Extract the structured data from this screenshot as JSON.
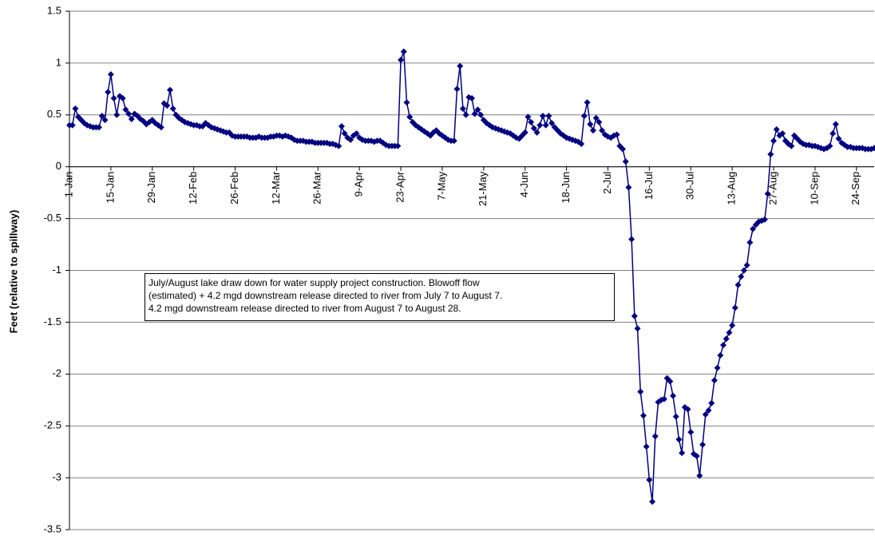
{
  "chart_data": {
    "type": "line",
    "y_label": "Feet (relative to spillway)",
    "annotation": [
      "July/August lake draw down for water supply project construction.  Blowoff flow",
      "(estimated) + 4.2 mgd downstream release directed to river from July 7 to August 7.",
      "4.2 mgd downstream release directed to river from August 7 to August 28."
    ],
    "ylim": [
      -3.5,
      1.5
    ],
    "yticks": [
      -3.5,
      -3,
      -2.5,
      -2,
      -1.5,
      -1,
      -0.5,
      0,
      0.5,
      1,
      1.5
    ],
    "grid": true,
    "color": "#000080",
    "categories": [
      "1-Jan",
      null,
      null,
      null,
      null,
      null,
      null,
      null,
      null,
      null,
      null,
      null,
      null,
      null,
      "15-Jan",
      null,
      null,
      null,
      null,
      null,
      null,
      null,
      null,
      null,
      null,
      null,
      null,
      null,
      "29-Jan",
      null,
      null,
      null,
      null,
      null,
      null,
      null,
      null,
      null,
      null,
      null,
      null,
      null,
      "12-Feb",
      null,
      null,
      null,
      null,
      null,
      null,
      null,
      null,
      null,
      null,
      null,
      null,
      null,
      "26-Feb",
      null,
      null,
      null,
      null,
      null,
      null,
      null,
      null,
      null,
      null,
      null,
      null,
      null,
      "12-Mar",
      null,
      null,
      null,
      null,
      null,
      null,
      null,
      null,
      null,
      null,
      null,
      null,
      null,
      "26-Mar",
      null,
      null,
      null,
      null,
      null,
      null,
      null,
      null,
      null,
      null,
      null,
      null,
      null,
      "9-Apr",
      null,
      null,
      null,
      null,
      null,
      null,
      null,
      null,
      null,
      null,
      null,
      null,
      null,
      "23-Apr",
      null,
      null,
      null,
      null,
      null,
      null,
      null,
      null,
      null,
      null,
      null,
      null,
      null,
      "7-May",
      null,
      null,
      null,
      null,
      null,
      null,
      null,
      null,
      null,
      null,
      null,
      null,
      null,
      "21-May",
      null,
      null,
      null,
      null,
      null,
      null,
      null,
      null,
      null,
      null,
      null,
      null,
      null,
      "4-Jun",
      null,
      null,
      null,
      null,
      null,
      null,
      null,
      null,
      null,
      null,
      null,
      null,
      null,
      "18-Jun",
      null,
      null,
      null,
      null,
      null,
      null,
      null,
      null,
      null,
      null,
      null,
      null,
      null,
      "2-Jul",
      null,
      null,
      null,
      null,
      null,
      null,
      null,
      null,
      null,
      null,
      null,
      null,
      null,
      "16-Jul",
      null,
      null,
      null,
      null,
      null,
      null,
      null,
      null,
      null,
      null,
      null,
      null,
      null,
      "30-Jul",
      null,
      null,
      null,
      null,
      null,
      null,
      null,
      null,
      null,
      null,
      null,
      null,
      null,
      "13-Aug",
      null,
      null,
      null,
      null,
      null,
      null,
      null,
      null,
      null,
      null,
      null,
      null,
      null,
      "27-Aug",
      null,
      null,
      null,
      null,
      null,
      null,
      null,
      null,
      null,
      null,
      null,
      null,
      null,
      "10-Sep",
      null,
      null,
      null,
      null,
      null,
      null,
      null,
      null,
      null,
      null,
      null,
      null,
      null,
      "24-Sep",
      null,
      null,
      null,
      null,
      null,
      null
    ],
    "values": [
      0.4,
      0.4,
      0.56,
      0.48,
      0.45,
      0.42,
      0.4,
      0.39,
      0.38,
      0.38,
      0.38,
      0.49,
      0.45,
      0.72,
      0.89,
      0.66,
      0.5,
      0.68,
      0.66,
      0.55,
      0.51,
      0.46,
      0.51,
      0.49,
      0.46,
      0.44,
      0.41,
      0.43,
      0.45,
      0.42,
      0.4,
      0.38,
      0.61,
      0.59,
      0.74,
      0.56,
      0.5,
      0.47,
      0.45,
      0.43,
      0.42,
      0.41,
      0.4,
      0.4,
      0.39,
      0.39,
      0.42,
      0.4,
      0.38,
      0.37,
      0.36,
      0.35,
      0.34,
      0.33,
      0.33,
      0.3,
      0.29,
      0.29,
      0.29,
      0.29,
      0.29,
      0.28,
      0.28,
      0.28,
      0.29,
      0.28,
      0.28,
      0.28,
      0.29,
      0.29,
      0.3,
      0.3,
      0.29,
      0.3,
      0.29,
      0.28,
      0.26,
      0.25,
      0.25,
      0.25,
      0.24,
      0.24,
      0.24,
      0.23,
      0.23,
      0.23,
      0.23,
      0.23,
      0.22,
      0.22,
      0.21,
      0.2,
      0.39,
      0.32,
      0.28,
      0.26,
      0.3,
      0.32,
      0.28,
      0.26,
      0.25,
      0.25,
      0.25,
      0.24,
      0.25,
      0.25,
      0.23,
      0.21,
      0.2,
      0.2,
      0.2,
      0.2,
      1.03,
      1.11,
      0.62,
      0.48,
      0.43,
      0.4,
      0.38,
      0.36,
      0.34,
      0.32,
      0.3,
      0.33,
      0.35,
      0.32,
      0.3,
      0.28,
      0.26,
      0.25,
      0.25,
      0.75,
      0.97,
      0.56,
      0.5,
      0.67,
      0.66,
      0.51,
      0.55,
      0.5,
      0.45,
      0.42,
      0.4,
      0.38,
      0.37,
      0.36,
      0.35,
      0.34,
      0.33,
      0.32,
      0.3,
      0.28,
      0.27,
      0.3,
      0.33,
      0.48,
      0.43,
      0.37,
      0.33,
      0.4,
      0.49,
      0.4,
      0.49,
      0.42,
      0.38,
      0.35,
      0.32,
      0.3,
      0.28,
      0.27,
      0.26,
      0.25,
      0.24,
      0.22,
      0.49,
      0.62,
      0.41,
      0.35,
      0.47,
      0.43,
      0.35,
      0.31,
      0.29,
      0.28,
      0.3,
      0.31,
      0.2,
      0.17,
      0.05,
      -0.2,
      -0.7,
      -1.44,
      -1.56,
      -2.17,
      -2.4,
      -2.7,
      -3.02,
      -3.23,
      -2.6,
      -2.27,
      -2.25,
      -2.24,
      -2.04,
      -2.07,
      -2.21,
      -2.41,
      -2.63,
      -2.76,
      -2.32,
      -2.34,
      -2.56,
      -2.77,
      -2.79,
      -2.98,
      -2.68,
      -2.39,
      -2.35,
      -2.28,
      -2.06,
      -1.94,
      -1.82,
      -1.72,
      -1.66,
      -1.6,
      -1.53,
      -1.36,
      -1.14,
      -1.06,
      -1.0,
      -0.95,
      -0.73,
      -0.6,
      -0.56,
      -0.53,
      -0.52,
      -0.51,
      -0.26,
      0.12,
      0.25,
      0.36,
      0.3,
      0.32,
      0.25,
      0.22,
      0.2,
      0.3,
      0.27,
      0.24,
      0.22,
      0.21,
      0.21,
      0.2,
      0.2,
      0.19,
      0.18,
      0.17,
      0.18,
      0.2,
      0.32,
      0.41,
      0.27,
      0.23,
      0.21,
      0.19,
      0.19,
      0.18,
      0.18,
      0.18,
      0.18,
      0.17,
      0.17,
      0.17,
      0.18
    ]
  }
}
